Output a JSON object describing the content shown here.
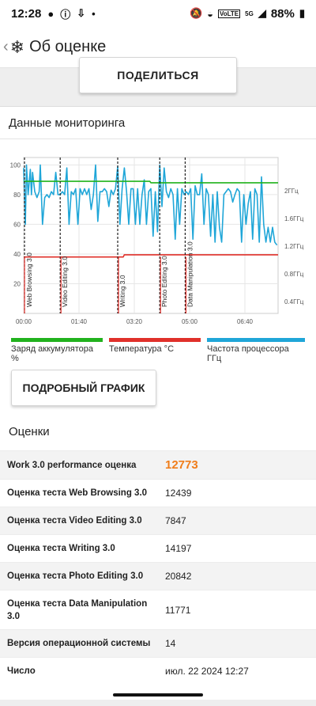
{
  "status": {
    "time": "12:28",
    "battery": "88%",
    "net": "VoLTE",
    "net_gen": "5G"
  },
  "app": {
    "title": "Об оценке"
  },
  "share_label": "ПОДЕЛИТЬСЯ",
  "monitoring_title": "Данные мониторинга",
  "chart_data": {
    "type": "line",
    "x_ticks": [
      "00:00",
      "01:40",
      "03:20",
      "05:00",
      "06:40"
    ],
    "y_left_ticks": [
      "20",
      "40",
      "60",
      "80",
      "100"
    ],
    "y_right_ticks": [
      "0.4ГГц",
      "0.8ГГц",
      "1.2ГГц",
      "1.6ГГц",
      "2ГГц"
    ],
    "markers": [
      "Web Browsing 3.0",
      "Video Editing 3.0",
      "Writing 3.0",
      "Photo Editing 3.0",
      "Data Manipulation 3.0"
    ],
    "marker_minutes": [
      0,
      66,
      170,
      246,
      292
    ],
    "x_max_minutes": 460,
    "battery_pct": {
      "x": [
        0,
        228,
        230,
        460
      ],
      "values": [
        89,
        89,
        88,
        88
      ]
    },
    "temperature": {
      "x": [
        0,
        180,
        182,
        460
      ],
      "values": [
        38,
        38,
        39.5,
        39.5
      ]
    },
    "cpu_freq": {
      "x": [
        0,
        3,
        5,
        8,
        12,
        14,
        16,
        20,
        24,
        28,
        30,
        34,
        38,
        42,
        46,
        50,
        54,
        58,
        62,
        66,
        70,
        74,
        78,
        82,
        86,
        90,
        94,
        98,
        102,
        106,
        110,
        114,
        118,
        122,
        126,
        130,
        134,
        138,
        142,
        146,
        150,
        154,
        158,
        162,
        166,
        170,
        174,
        178,
        182,
        186,
        190,
        194,
        198,
        202,
        206,
        210,
        214,
        218,
        222,
        226,
        230,
        234,
        238,
        242,
        246,
        250,
        254,
        258,
        262,
        266,
        270,
        274,
        278,
        282,
        286,
        290,
        294,
        298,
        302,
        306,
        310,
        314,
        318,
        322,
        326,
        330,
        334,
        338,
        342,
        346,
        350,
        354,
        358,
        362,
        366,
        370,
        374,
        378,
        382,
        386,
        390,
        394,
        398,
        402,
        406,
        410,
        414,
        418,
        422,
        426,
        430,
        434,
        438,
        442,
        446,
        450,
        454,
        458
      ],
      "values": [
        98,
        60,
        100,
        80,
        97,
        80,
        95,
        82,
        78,
        82,
        100,
        60,
        78,
        80,
        78,
        82,
        80,
        95,
        80,
        80,
        82,
        80,
        98,
        60,
        82,
        80,
        84,
        60,
        84,
        80,
        84,
        80,
        84,
        70,
        80,
        100,
        62,
        82,
        82,
        84,
        82,
        72,
        83,
        80,
        84,
        99,
        60,
        84,
        98,
        82,
        60,
        84,
        84,
        60,
        84,
        60,
        80,
        90,
        60,
        82,
        84,
        52,
        82,
        55,
        100,
        72,
        98,
        82,
        78,
        84,
        80,
        50,
        84,
        60,
        84,
        80,
        82,
        80,
        84,
        50,
        86,
        80,
        80,
        94,
        60,
        84,
        80,
        52,
        80,
        48,
        82,
        58,
        48,
        80,
        82,
        84,
        82,
        75,
        80,
        84,
        82,
        48,
        80,
        60,
        74,
        82,
        50,
        84,
        80,
        48,
        92,
        60,
        48,
        58,
        48,
        58,
        48,
        46
      ]
    },
    "legend": [
      "Заряд аккумулятора %",
      "Температура °C",
      "Частота процессора ГГц"
    ],
    "colors": {
      "battery": "#21b21d",
      "temperature": "#e0302a",
      "cpu": "#1fa6d8"
    }
  },
  "detail_label": "ПОДРОБНЫЙ ГРАФИК",
  "scores_title": "Оценки",
  "rows": [
    {
      "k": "Work 3.0 performance оценка",
      "v": "12773"
    },
    {
      "k": "Оценка теста Web Browsing 3.0",
      "v": "12439"
    },
    {
      "k": "Оценка теста Video Editing 3.0",
      "v": "7847"
    },
    {
      "k": "Оценка теста Writing 3.0",
      "v": "14197"
    },
    {
      "k": "Оценка теста Photo Editing 3.0",
      "v": "20842"
    },
    {
      "k": "Оценка теста Data Manipulation 3.0",
      "v": "11771"
    },
    {
      "k": "Версия операционной системы",
      "v": "14"
    },
    {
      "k": "Число",
      "v": "июл. 22 2024 12:27"
    }
  ]
}
